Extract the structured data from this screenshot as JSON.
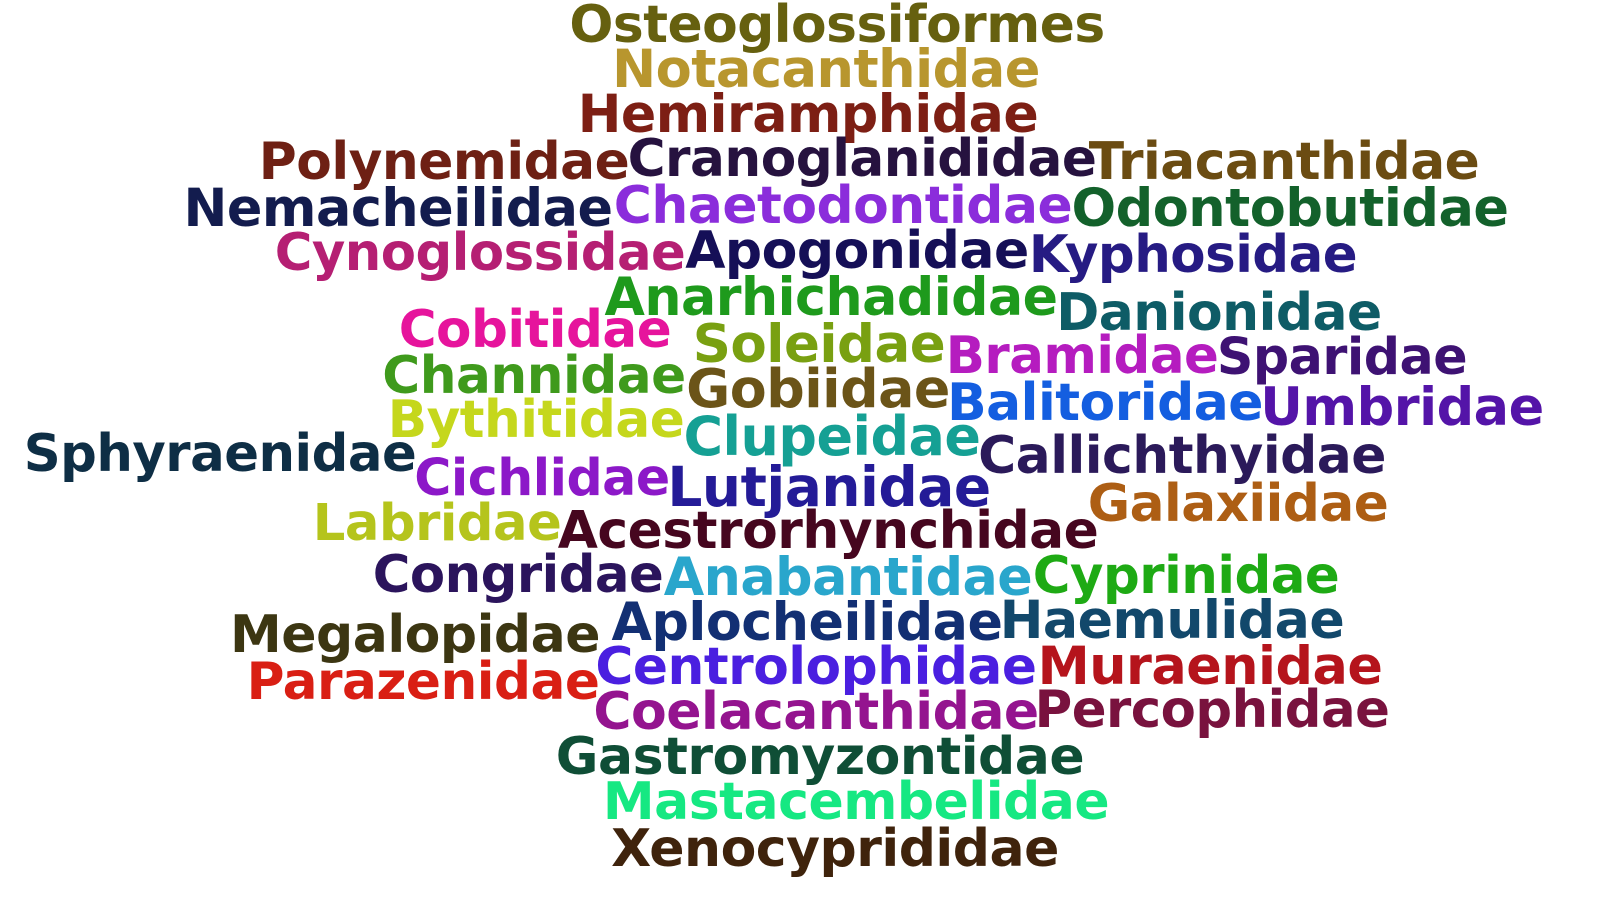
{
  "words": [
    {
      "text": "Osteoglossiformes",
      "color": "#66600f"
    },
    {
      "text": "Notacanthidae",
      "color": "#b8962e"
    },
    {
      "text": "Hemiramphidae",
      "color": "#7d1f14"
    },
    {
      "text": "Polynemidae",
      "color": "#6e2014"
    },
    {
      "text": "Cranoglanididae",
      "color": "#26123f"
    },
    {
      "text": "Triacanthidae",
      "color": "#6b4c12"
    },
    {
      "text": "Nemacheilidae",
      "color": "#131c4e"
    },
    {
      "text": "Chaetodontidae",
      "color": "#8b2ddb"
    },
    {
      "text": "Odontobutidae",
      "color": "#13612b"
    },
    {
      "text": "Cynoglossidae",
      "color": "#b51f73"
    },
    {
      "text": "Apogonidae",
      "color": "#150f57"
    },
    {
      "text": "Kyphosidae",
      "color": "#261b83"
    },
    {
      "text": "Anarhichadidae",
      "color": "#1e9a1c"
    },
    {
      "text": "Danionidae",
      "color": "#0e5c66"
    },
    {
      "text": "Cobitidae",
      "color": "#e6149c"
    },
    {
      "text": "Soleidae",
      "color": "#79a011"
    },
    {
      "text": "Bramidae",
      "color": "#b51cbf"
    },
    {
      "text": "Sparidae",
      "color": "#3e1273"
    },
    {
      "text": "Channidae",
      "color": "#3f9a1c"
    },
    {
      "text": "Gobiidae",
      "color": "#6b5418"
    },
    {
      "text": "Balitoridae",
      "color": "#145ee0"
    },
    {
      "text": "Umbridae",
      "color": "#5414a8"
    },
    {
      "text": "Bythitidae",
      "color": "#c5d71c"
    },
    {
      "text": "Clupeidae",
      "color": "#15a094"
    },
    {
      "text": "Sphyraenidae",
      "color": "#0e2e45"
    },
    {
      "text": "Callichthyidae",
      "color": "#2b1a5a"
    },
    {
      "text": "Cichlidae",
      "color": "#8c18c8"
    },
    {
      "text": "Lutjanidae",
      "color": "#241b97"
    },
    {
      "text": "Galaxiidae",
      "color": "#ad5e14"
    },
    {
      "text": "Labridae",
      "color": "#b5c41c"
    },
    {
      "text": "Acestrorhynchidae",
      "color": "#46061f"
    },
    {
      "text": "Congridae",
      "color": "#2b145c"
    },
    {
      "text": "Anabantidae",
      "color": "#29a6cc"
    },
    {
      "text": "Cyprinidae",
      "color": "#1eaa14"
    },
    {
      "text": "Megalopidae",
      "color": "#3c3612"
    },
    {
      "text": "Aplocheilidae",
      "color": "#122f73"
    },
    {
      "text": "Haemulidae",
      "color": "#12486b"
    },
    {
      "text": "Parazenidae",
      "color": "#d91f14"
    },
    {
      "text": "Centrolophidae",
      "color": "#4a1fe0"
    },
    {
      "text": "Muraenidae",
      "color": "#b5141c"
    },
    {
      "text": "Coelacanthidae",
      "color": "#94148f"
    },
    {
      "text": "Percophidae",
      "color": "#79123e"
    },
    {
      "text": "Gastromyzontidae",
      "color": "#0f4e36"
    },
    {
      "text": "Mastacembelidae",
      "color": "#16e882"
    },
    {
      "text": "Xenocyprididae",
      "color": "#3f230c"
    }
  ]
}
